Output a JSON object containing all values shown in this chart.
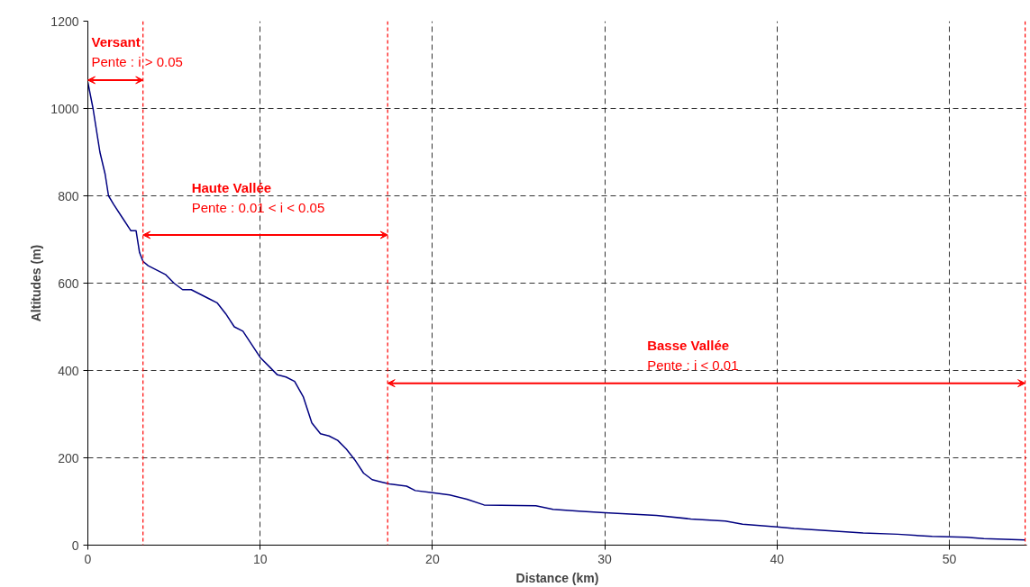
{
  "chart_data": {
    "type": "line",
    "xlabel": "Distance (km)",
    "ylabel": "Altitudes (m)",
    "x": [
      0,
      0.3,
      0.7,
      1.0,
      1.2,
      1.5,
      2.0,
      2.5,
      2.8,
      3.0,
      3.2,
      3.5,
      4.5,
      5.0,
      5.5,
      6.0,
      7.0,
      7.5,
      8.0,
      8.5,
      9.0,
      9.5,
      10.0,
      10.5,
      11.0,
      11.5,
      12.0,
      12.5,
      13.0,
      13.5,
      14.0,
      14.5,
      15.0,
      15.5,
      16.0,
      16.5,
      17.0,
      17.5,
      18.5,
      19.0,
      20.0,
      21.0,
      22.0,
      23.0,
      26.0,
      27.0,
      28.5,
      30.0,
      33.0,
      35.0,
      37.0,
      38.0,
      40.0,
      41.0,
      43.0,
      45.0,
      47.0,
      49.0,
      51.0,
      52.0,
      54.4
    ],
    "series": [
      {
        "color": "#000080",
        "values": [
          1060,
          1000,
          900,
          850,
          800,
          780,
          750,
          720,
          720,
          670,
          650,
          640,
          620,
          600,
          585,
          585,
          565,
          555,
          530,
          500,
          490,
          460,
          430,
          410,
          390,
          385,
          375,
          340,
          280,
          255,
          250,
          240,
          220,
          195,
          165,
          150,
          145,
          140,
          135,
          125,
          120,
          115,
          105,
          92,
          90,
          82,
          78,
          74,
          68,
          60,
          55,
          48,
          42,
          38,
          33,
          28,
          25,
          20,
          18,
          15,
          12
        ]
      }
    ],
    "xlim": [
      0,
      54.5
    ],
    "xticks": [
      0,
      10,
      20,
      30,
      40,
      50
    ],
    "ylim": [
      0,
      1200
    ],
    "yticks": [
      0,
      200,
      400,
      600,
      800,
      1000,
      1200
    ],
    "grid": true,
    "marker": "none",
    "line_style": "solid",
    "ref_lines": [
      {
        "axis": "x",
        "value": 3.2,
        "color": "#ff0000",
        "line_style": "dashed"
      },
      {
        "axis": "x",
        "value": 17.4,
        "color": "#ff0000",
        "line_style": "dashed"
      },
      {
        "axis": "x",
        "value": 54.4,
        "color": "#ff0000",
        "line_style": "dashed"
      }
    ],
    "annotations": [
      "Versant",
      "Pente : i > 0.05",
      "Haute Vallée",
      "Pente : 0.01 < i < 0.05",
      "Basse Vallée",
      "Pente : i < 0.01"
    ]
  }
}
